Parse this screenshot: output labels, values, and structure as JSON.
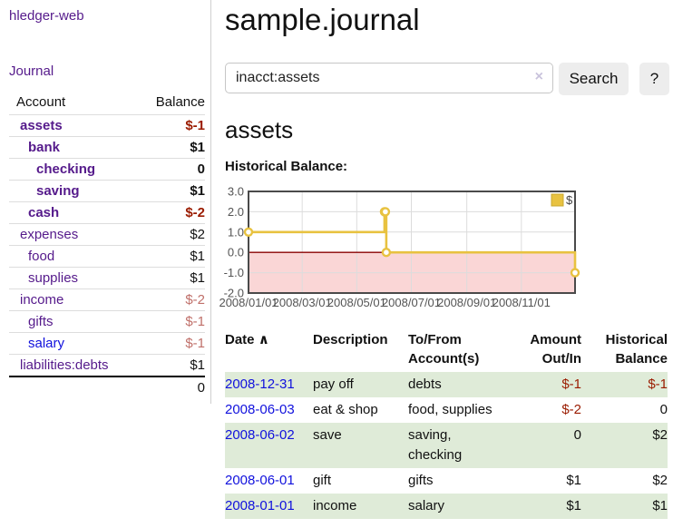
{
  "colors": {
    "purple_link": "#551A8B",
    "blue_link": "#1111DD",
    "negative_red": "#9A1B00",
    "muted_negative_red": "#C0706A",
    "row_green": "#DFEBD8"
  },
  "sidebar": {
    "brand": "hledger-web",
    "nav_journal": "Journal",
    "account_header": "Account",
    "balance_header": "Balance",
    "rows": [
      {
        "name": "assets",
        "depth": 1,
        "bold": true,
        "link": "purple",
        "balance": "$-1",
        "tone": "negative"
      },
      {
        "name": "bank",
        "depth": 2,
        "bold": true,
        "link": "purple",
        "balance": "$1",
        "tone": "normal"
      },
      {
        "name": "checking",
        "depth": 3,
        "bold": true,
        "link": "purple",
        "balance": "0",
        "tone": "normal"
      },
      {
        "name": "saving",
        "depth": 3,
        "bold": true,
        "link": "purple",
        "balance": "$1",
        "tone": "normal"
      },
      {
        "name": "cash",
        "depth": 2,
        "bold": true,
        "link": "purple",
        "balance": "$-2",
        "tone": "negative"
      },
      {
        "name": "expenses",
        "depth": 1,
        "bold": false,
        "link": "purple",
        "balance": "$2",
        "tone": "normal"
      },
      {
        "name": "food",
        "depth": 2,
        "bold": false,
        "link": "purple",
        "balance": "$1",
        "tone": "normal"
      },
      {
        "name": "supplies",
        "depth": 2,
        "bold": false,
        "link": "purple",
        "balance": "$1",
        "tone": "normal"
      },
      {
        "name": "income",
        "depth": 1,
        "bold": false,
        "link": "purple",
        "balance": "$-2",
        "tone": "muted"
      },
      {
        "name": "gifts",
        "depth": 2,
        "bold": false,
        "link": "purple",
        "balance": "$-1",
        "tone": "muted"
      },
      {
        "name": "salary",
        "depth": 2,
        "bold": false,
        "link": "blue",
        "balance": "$-1",
        "tone": "muted"
      },
      {
        "name": "liabilities:debts",
        "depth": 1,
        "bold": false,
        "link": "purple",
        "balance": "$1",
        "tone": "normal"
      }
    ],
    "total": "0"
  },
  "main": {
    "title": "sample.journal",
    "search": {
      "value": "inacct:assets",
      "clear_icon": "×",
      "button_label": "Search",
      "help_label": "?"
    },
    "section_title": "assets",
    "chart_label": "Historical Balance:",
    "table": {
      "headers": {
        "date": "Date",
        "sort_icon": "∧",
        "description": "Description",
        "accounts_line1": "To/From",
        "accounts_line2": "Account(s)",
        "amount_line1": "Amount",
        "amount_line2": "Out/In",
        "balance_line1": "Historical",
        "balance_line2": "Balance"
      },
      "rows": [
        {
          "date": "2008-12-31",
          "description": "pay off",
          "accounts": "debts",
          "amount": "$-1",
          "amount_negative": true,
          "balance": "$-1",
          "balance_negative": true,
          "green": true
        },
        {
          "date": "2008-06-03",
          "description": "eat & shop",
          "accounts": "food, supplies",
          "amount": "$-2",
          "amount_negative": true,
          "balance": "0",
          "balance_negative": false,
          "green": false
        },
        {
          "date": "2008-06-02",
          "description": "save",
          "accounts": "saving, checking",
          "amount": "0",
          "amount_negative": false,
          "balance": "$2",
          "balance_negative": false,
          "green": true
        },
        {
          "date": "2008-06-01",
          "description": "gift",
          "accounts": "gifts",
          "amount": "$1",
          "amount_negative": false,
          "balance": "$2",
          "balance_negative": false,
          "green": false
        },
        {
          "date": "2008-01-01",
          "description": "income",
          "accounts": "salary",
          "amount": "$1",
          "amount_negative": false,
          "balance": "$1",
          "balance_negative": false,
          "green": true
        }
      ]
    }
  },
  "chart_data": {
    "type": "line",
    "step": true,
    "title": "Historical Balance",
    "series": [
      {
        "name": "$",
        "color": "#E8C240",
        "points": [
          [
            "2008-01-01",
            1
          ],
          [
            "2008-06-01",
            2
          ],
          [
            "2008-06-02",
            2
          ],
          [
            "2008-06-03",
            0
          ],
          [
            "2008-12-31",
            -1
          ]
        ]
      }
    ],
    "x_range": [
      "2008-01-01",
      "2008-12-31"
    ],
    "ylim": [
      -2,
      3
    ],
    "yticks": [
      3,
      2,
      1,
      0,
      -1,
      -2
    ],
    "ytick_labels": [
      "3.0",
      "2.0",
      "1.0",
      "0.0",
      "-1.0",
      "-2.0"
    ],
    "xticks": [
      "2008-01-01",
      "2008-03-01",
      "2008-05-01",
      "2008-07-01",
      "2008-09-01",
      "2008-11-01"
    ],
    "xtick_labels": [
      "2008/01/01",
      "2008/03/01",
      "2008/05/01",
      "2008/07/01",
      "2008/09/01",
      "2008/11/01"
    ],
    "grid": true,
    "legend_position": "top-right",
    "marker": "open-circle",
    "zero_line_color": "#8B0000",
    "negative_region_color": "#FAD6D6",
    "grid_color": "#DCDCDC",
    "border_color": "#4A4A4A",
    "tick_label_color": "#545454",
    "legend_text_color": "#444444"
  }
}
